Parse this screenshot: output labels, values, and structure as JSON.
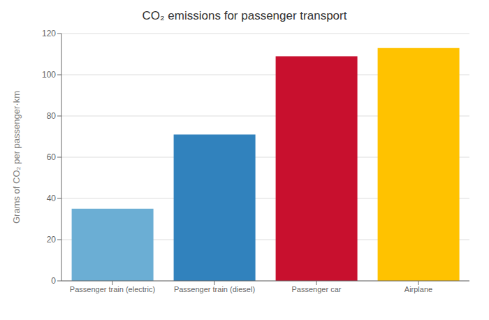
{
  "chart_data": {
    "type": "bar",
    "title": "CO₂ emissions for passenger transport",
    "ylabel": "Grams of CO₂ per passenger·km",
    "categories": [
      "Passenger train (electric)",
      "Passenger train (diesel)",
      "Passenger car",
      "Airplane"
    ],
    "values": [
      35,
      71,
      109,
      113
    ],
    "colors": [
      "#6BAED4",
      "#3182BD",
      "#C8102E",
      "#FFC200"
    ],
    "ylim": [
      0,
      120
    ],
    "yticks": [
      0,
      20,
      40,
      60,
      80,
      100,
      120
    ],
    "grid": true
  }
}
